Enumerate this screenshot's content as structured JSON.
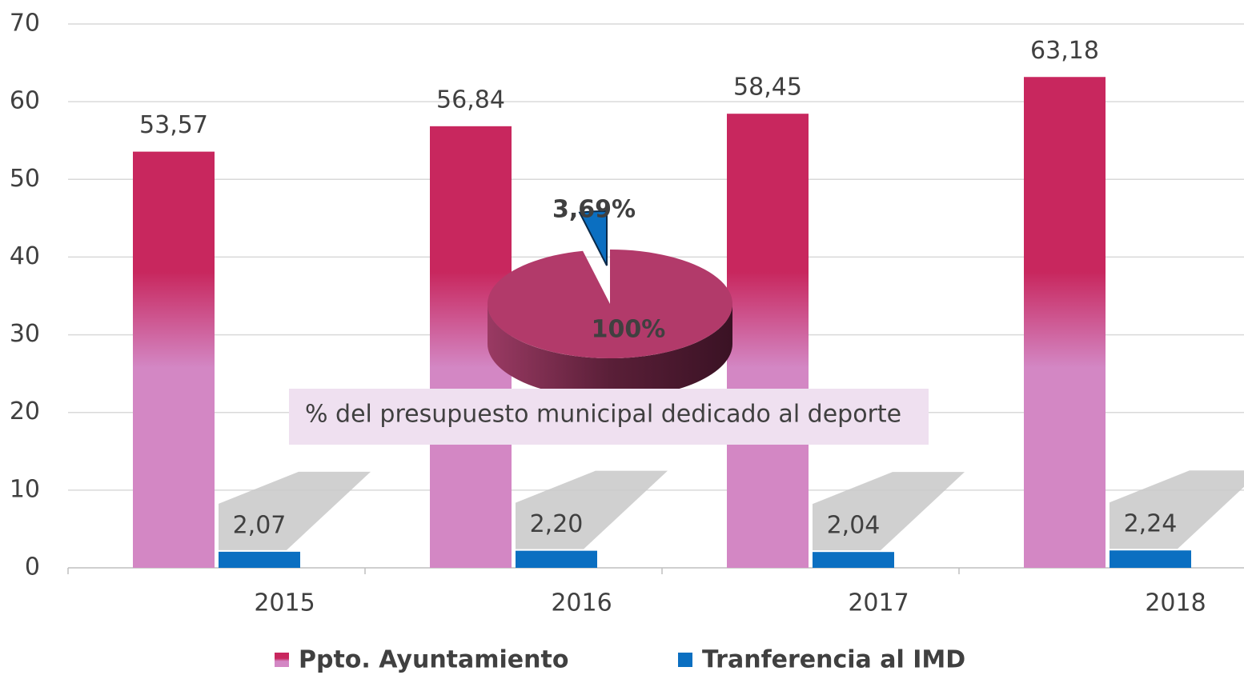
{
  "chart_data": [
    {
      "type": "bar",
      "categories": [
        "2015",
        "2016",
        "2017",
        "2018"
      ],
      "series": [
        {
          "name": "Ppto. Ayuntamiento",
          "color": "#c8275e",
          "values": [
            53.57,
            56.84,
            58.45,
            63.18
          ],
          "value_labels": [
            "53,57",
            "56,84",
            "58,45",
            "63,18"
          ]
        },
        {
          "name": "Tranferencia al IMD",
          "color": "#0b6fc1",
          "values": [
            2.07,
            2.2,
            2.04,
            2.24
          ],
          "value_labels": [
            "2,07",
            "2,20",
            "2,04",
            "2,24"
          ]
        }
      ],
      "ylim": [
        0,
        70
      ],
      "yticks": [
        0,
        10,
        20,
        30,
        40,
        50,
        60,
        70
      ],
      "grid": true,
      "legend": "bottom"
    },
    {
      "type": "pie",
      "title": "% del presupuesto municipal dedicado al deporte",
      "values": [
        3.69,
        100
      ],
      "value_labels": [
        "3,69%",
        "100%"
      ],
      "colors": [
        "#0b6fc1",
        "#b23a6a"
      ]
    }
  ]
}
